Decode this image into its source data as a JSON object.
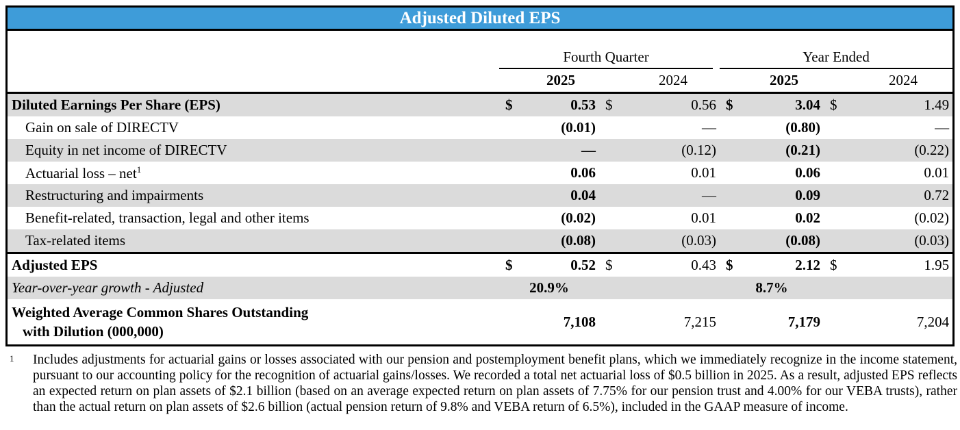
{
  "title": "Adjusted Diluted EPS",
  "colors": {
    "header_bg": "#3E9CD9",
    "shaded_row": "#DBDBDB",
    "header_text": "#FFFFFF"
  },
  "table": {
    "dollar": "$",
    "groups": {
      "fourth_quarter": "Fourth Quarter",
      "year_ended": "Year Ended"
    },
    "years": [
      "2025",
      "2024",
      "2025",
      "2024"
    ],
    "rows": [
      {
        "label": "Diluted Earnings Per Share (EPS)",
        "values": [
          "0.53",
          "0.56",
          "3.04",
          "1.49"
        ]
      },
      {
        "label": "Gain on sale of DIRECTV",
        "values": [
          "(0.01)",
          "—",
          "(0.80)",
          "—"
        ]
      },
      {
        "label": "Equity in net income of DIRECTV",
        "values": [
          "—",
          "(0.12)",
          "(0.21)",
          "(0.22)"
        ]
      },
      {
        "label": "Actuarial loss – net",
        "sup": "1",
        "values": [
          "0.06",
          "0.01",
          "0.06",
          "0.01"
        ]
      },
      {
        "label": "Restructuring and impairments",
        "values": [
          "0.04",
          "—",
          "0.09",
          "0.72"
        ]
      },
      {
        "label": "Benefit-related, transaction, legal and other items",
        "values": [
          "(0.02)",
          "0.01",
          "0.02",
          "(0.02)"
        ]
      },
      {
        "label": "Tax-related items",
        "values": [
          "(0.08)",
          "(0.03)",
          "(0.08)",
          "(0.03)"
        ]
      },
      {
        "label": "Adjusted EPS",
        "values": [
          "0.52",
          "0.43",
          "2.12",
          "1.95"
        ]
      },
      {
        "label": "Year-over-year growth - Adjusted",
        "values": [
          "20.9%",
          "8.7%"
        ]
      },
      {
        "label1": "Weighted Average Common Shares Outstanding",
        "label2": "with Dilution (000,000)",
        "values": [
          "7,108",
          "7,215",
          "7,179",
          "7,204"
        ]
      }
    ]
  },
  "footnote": {
    "marker": "1",
    "text": "Includes adjustments for actuarial gains or losses associated with our pension and postemployment benefit plans, which we immediately recognize in the income statement, pursuant to our accounting policy for the recognition of actuarial gains/losses. We recorded a total net actuarial loss of $0.5 billion in 2025. As a result, adjusted EPS reflects an expected return on plan assets of $2.1 billion (based on an average expected return on plan assets of 7.75% for our pension trust and 4.00% for our VEBA trusts), rather than the actual return on plan assets of $2.6 billion (actual pension return of 9.8% and VEBA return of 6.5%), included in the GAAP measure of income."
  }
}
